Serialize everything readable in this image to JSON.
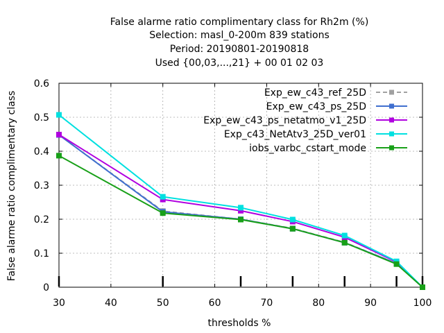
{
  "chart_data": {
    "type": "line",
    "title_lines": [
      "False alarme ratio complimentary class  for Rh2m (%)",
      "Selection: masl_0-200m    839 stations",
      "Period: 20190801-20190818",
      "Used {00,03,...,21} + 00 01 02 03"
    ],
    "xlabel": "thresholds %",
    "ylabel": "False alarme ratio complimentary class",
    "xlim": [
      30,
      100
    ],
    "ylim": [
      0,
      0.6
    ],
    "xticks": [
      30,
      40,
      50,
      60,
      70,
      80,
      90,
      100
    ],
    "yticks": [
      0,
      0.1,
      0.2,
      0.3,
      0.4,
      0.5,
      0.6
    ],
    "ytick_labels": [
      "0",
      "0.1",
      "0.2",
      "0.3",
      "0.4",
      "0.5",
      "0.6"
    ],
    "grid": true,
    "legend_position": "top-right",
    "x": [
      30,
      50,
      65,
      75,
      85,
      95,
      100
    ],
    "series": [
      {
        "name": "Exp_ew_c43_ref_25D",
        "color": "#a0a0a0",
        "dashed": true,
        "marker": "plus",
        "values": [
          0.448,
          0.224,
          0.2,
          0.173,
          0.132,
          0.07,
          0.0
        ]
      },
      {
        "name": "Exp_ew_c43_ps_25D",
        "color": "#3f6fcf",
        "dashed": false,
        "marker": "plus",
        "values": [
          0.448,
          0.222,
          0.2,
          0.172,
          0.131,
          0.07,
          0.0
        ]
      },
      {
        "name": "Exp_ew_c43_ps_netatmo_v1_25D",
        "color": "#b000e0",
        "dashed": false,
        "marker": "plus",
        "values": [
          0.449,
          0.258,
          0.225,
          0.193,
          0.147,
          0.074,
          0.0
        ]
      },
      {
        "name": "Exp_c43_NetAtv3_25D_ver01",
        "color": "#00e0e0",
        "dashed": false,
        "marker": "plus",
        "values": [
          0.507,
          0.266,
          0.234,
          0.199,
          0.152,
          0.076,
          0.0
        ]
      },
      {
        "name": "iobs_varbc_cstart_mode",
        "color": "#18a018",
        "dashed": false,
        "marker": "plus",
        "values": [
          0.387,
          0.218,
          0.199,
          0.172,
          0.131,
          0.068,
          0.0
        ]
      }
    ],
    "bottom_tick_marks_x": [
      30,
      50,
      65,
      75,
      85,
      95,
      100
    ]
  }
}
